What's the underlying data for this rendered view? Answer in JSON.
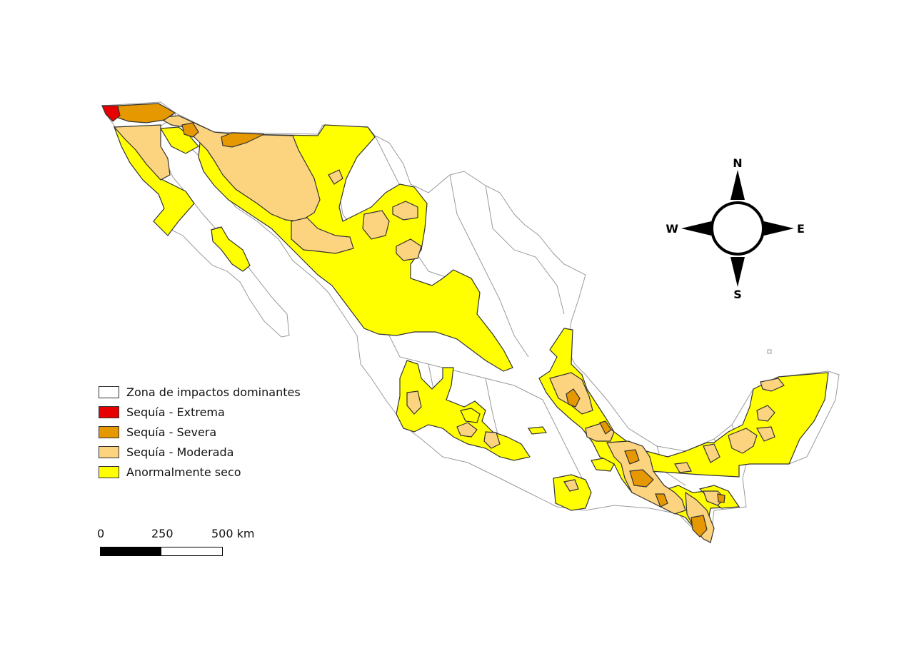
{
  "legend": {
    "items": [
      {
        "label": "Zona de impactos dominantes",
        "color": "#ffffff"
      },
      {
        "label": "Sequía - Extrema",
        "color": "#e60000"
      },
      {
        "label": "Sequía - Severa",
        "color": "#e69800"
      },
      {
        "label": "Sequía - Moderada",
        "color": "#fcd37f"
      },
      {
        "label": "Anormalmente seco",
        "color": "#ffff00"
      }
    ]
  },
  "scale": {
    "labels": [
      "0",
      "250",
      "500 km"
    ]
  },
  "compass": {
    "n": "N",
    "s": "S",
    "e": "E",
    "w": "W"
  },
  "colors": {
    "extreme": "#e60000",
    "severe": "#e69800",
    "moderate": "#fcd37f",
    "abnormal": "#ffff00",
    "outline": "#333333",
    "boundary": "#9a9a9a"
  }
}
